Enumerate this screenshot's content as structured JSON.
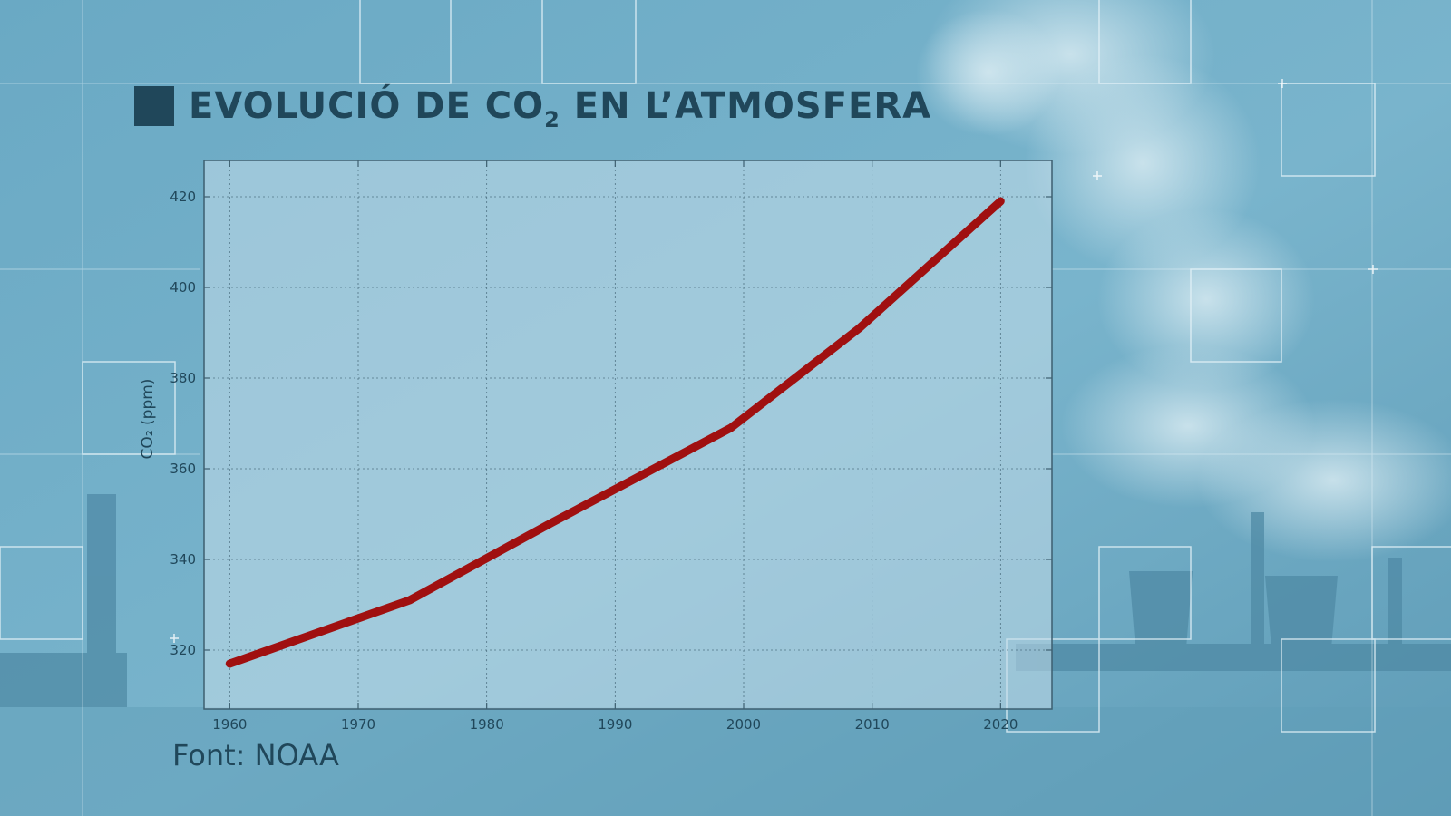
{
  "title": {
    "prefix": "EVOLUCIÓ DE CO",
    "subscript": "2",
    "suffix": " EN L’ATMOSFERA"
  },
  "source": "Font: NOAA",
  "colors": {
    "line": "#a01010",
    "text": "#20475a",
    "plot_bg": "#c2dde9"
  },
  "chart_data": {
    "type": "line",
    "title": "EVOLUCIÓ DE CO₂ EN L’ATMOSFERA",
    "ylabel": "CO₂ (ppm)",
    "xlabel": "",
    "xlim": [
      1958,
      2024
    ],
    "ylim": [
      307,
      428
    ],
    "xticks": [
      1960,
      1970,
      1980,
      1990,
      2000,
      2010,
      2020
    ],
    "yticks": [
      320,
      340,
      360,
      380,
      400,
      420
    ],
    "grid": true,
    "x": [
      1960,
      1974,
      1985,
      1991,
      1999,
      2009,
      2020
    ],
    "series": [
      {
        "values": [
          317,
          331,
          348,
          357,
          369,
          391,
          419
        ]
      }
    ]
  }
}
